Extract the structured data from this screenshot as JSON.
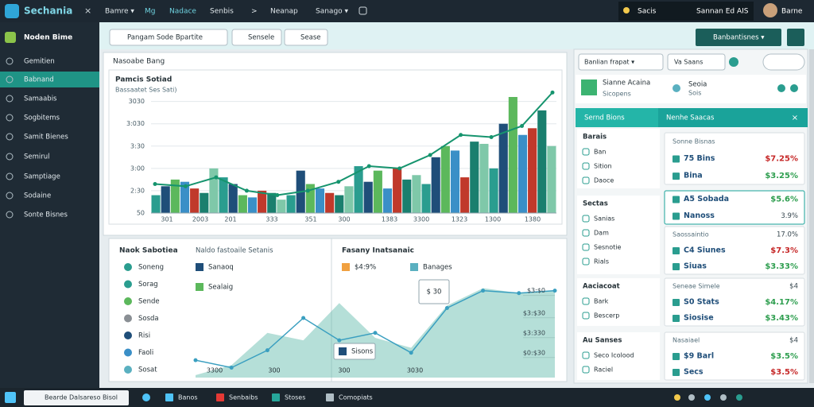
{
  "top_bar": {
    "logo": "Sechania",
    "close": "×",
    "menu": [
      "Bamre ▾",
      "Mg",
      "Nadace",
      "Senbis",
      ">",
      "Neanap",
      "Sanago ▾"
    ],
    "right": [
      "Sacis",
      "Sannan Ed AIS",
      "Barne"
    ]
  },
  "sidebar": {
    "title": "Noden Bime",
    "active": 1,
    "items": [
      "Gemitien",
      "Babnand",
      "Samaabis",
      "Sogbitems",
      "Samit Bienes",
      "Semirul",
      "Samptiage",
      "Sodaine",
      "Sonte Bisnes"
    ]
  },
  "toolbar": {
    "search": "Pangam Sode Bpartite",
    "buttons": [
      "Sensele",
      "Sease"
    ],
    "action": "Banbantisnes ▾"
  },
  "main_panel": {
    "title": "Nasoabe Bang",
    "chart": {
      "type": "bar",
      "title": "Pamcis Sotiad",
      "subtitle": "Bassaatet Ses Sati)",
      "x_tick_labels": [
        "301",
        "2003",
        "201",
        "333",
        "351",
        "300",
        "1383",
        "3300",
        "1323",
        "1300",
        "1380"
      ],
      "values": [
        0.8,
        1.2,
        1.5,
        1.4,
        1.1,
        0.9,
        2.0,
        1.6,
        1.3,
        0.8,
        0.7,
        1.0,
        0.9,
        0.6,
        0.8,
        1.9,
        1.3,
        1.1,
        0.9,
        0.8,
        1.2,
        2.1,
        1.4,
        1.9,
        1.1,
        2.0,
        1.5,
        1.7,
        1.3,
        2.5,
        3.0,
        2.8,
        1.6,
        3.2,
        3.1,
        2.0,
        4.0,
        5.2,
        3.5,
        3.8,
        4.6,
        3.0
      ],
      "palette": [
        "#2a9d8f",
        "#1f4e79",
        "#5cb85c",
        "#3a8fc7",
        "#c0392b",
        "#1a7f6e",
        "#7fc8a9"
      ],
      "line": {
        "color": "#16946e",
        "values": [
          1.3,
          1.2,
          1.6,
          1.0,
          0.8,
          1.0,
          1.4,
          2.1,
          2.0,
          2.6,
          3.5,
          3.4,
          3.9,
          5.4
        ]
      },
      "ylim": [
        0,
        5.2
      ],
      "yticks": [
        {
          "value": 0,
          "label": "50"
        },
        {
          "value": 1,
          "label": "2:30"
        },
        {
          "value": 2,
          "label": "3:00"
        },
        {
          "value": 3,
          "label": "3:30"
        },
        {
          "value": 4,
          "label": "3:030"
        },
        {
          "value": 5,
          "label": "3030"
        }
      ],
      "grid": true
    }
  },
  "bottom_left": {
    "title": "Naok Sabotiea",
    "subtitle": "Naldo fastoaile Setanis",
    "items": [
      "Soneng",
      "Sorag",
      "Sende",
      "Sosda",
      "Risi",
      "Faoli",
      "Sosat"
    ],
    "legend": [
      {
        "name": "Sanaoq",
        "color": "#1f4e79"
      },
      {
        "name": "Sealaig",
        "color": "#5cb85c"
      }
    ]
  },
  "bottom_right": {
    "title": "Fasany Inatsanaic",
    "legend": [
      {
        "name": "$4:9%",
        "color": "#f0a040"
      },
      {
        "name": "Banages",
        "color": "#5ab0c0"
      }
    ],
    "callouts": [
      "$ 30",
      "Sisons"
    ],
    "chart": {
      "type": "area",
      "x_tick_labels": [
        "3300",
        "300",
        "300",
        "3030"
      ],
      "area": {
        "color": "#5bb8a8",
        "values": [
          0.1,
          0.5,
          1.8,
          1.5,
          3.0,
          1.6,
          1.2,
          2.9,
          3.6,
          3.4,
          3.5
        ]
      },
      "line": {
        "color": "#3a9fc0",
        "values": [
          0.7,
          0.4,
          1.1,
          2.4,
          1.5,
          1.8,
          1.0,
          2.8,
          3.5,
          3.4,
          3.5
        ]
      },
      "ylim": [
        0,
        4
      ],
      "yticks": [
        {
          "value": 1.0,
          "label": "$0:$30"
        },
        {
          "value": 1.8,
          "label": "$3:330"
        },
        {
          "value": 2.6,
          "label": "$3:$30"
        },
        {
          "value": 3.5,
          "label": "$3:$0"
        }
      ]
    }
  },
  "right_panel": {
    "filters": [
      "Banlian frapat ▾",
      "Va Saans"
    ],
    "summary": {
      "title": "Sianne Acaina",
      "subtitle": "Sicopens",
      "name": "Seoia",
      "detail": "Sois"
    },
    "tabs": [
      "Sernd Bions",
      "Nenhe Saacas",
      "×"
    ],
    "sections": [
      {
        "title": "Barais",
        "items": [
          "Ban",
          "Sition",
          "Daoce"
        ]
      },
      {
        "title": "Sectas",
        "items": [
          "Sanias",
          "Dam",
          "Sesnotie",
          "Rials"
        ]
      },
      {
        "title": "Aaciacoat",
        "items": [
          "Bark",
          "Bescerp"
        ]
      },
      {
        "title": "Au Sanses",
        "items": [
          "Seco Icolood",
          "Raciel"
        ]
      }
    ],
    "cards": [
      {
        "rows": [
          {
            "label": "Sonne Bisnas"
          },
          {
            "label": "75 Bins",
            "value": "$7.25%",
            "tone": "down"
          },
          {
            "label": "Bina",
            "value": "$3.25%",
            "tone": "up"
          }
        ]
      },
      {
        "rows": [
          {
            "label": "A5 Sobada",
            "value": "$5.6%",
            "tone": "up"
          },
          {
            "label": "Nanoss",
            "value": "3.9%",
            "tone": "flat"
          }
        ]
      },
      {
        "rows": [
          {
            "label": "Saossaintio",
            "value": "17.0%",
            "tone": "flat"
          },
          {
            "label": "C4 Siunes",
            "value": "$7.3%",
            "tone": "down"
          },
          {
            "label": "Siuas",
            "value": "$3.33%",
            "tone": "up"
          }
        ]
      },
      {
        "rows": [
          {
            "label": "Seneae Simele",
            "value": "$4",
            "tone": "flat"
          },
          {
            "label": "S0 Stats",
            "value": "$4.17%",
            "tone": "up"
          },
          {
            "label": "Siosise",
            "value": "$3.43%",
            "tone": "up"
          }
        ]
      },
      {
        "rows": [
          {
            "label": "Nasaiael",
            "value": "$4",
            "tone": "flat"
          },
          {
            "label": "$9 Barl",
            "value": "$3.5%",
            "tone": "up"
          },
          {
            "label": "Secs",
            "value": "$3.5%",
            "tone": "down"
          }
        ]
      }
    ]
  },
  "taskbar": {
    "search": "Bearde Dalsareso Bisol",
    "items": [
      "Banos",
      "Senbaibs",
      "Stoses",
      "Comopiats"
    ]
  }
}
